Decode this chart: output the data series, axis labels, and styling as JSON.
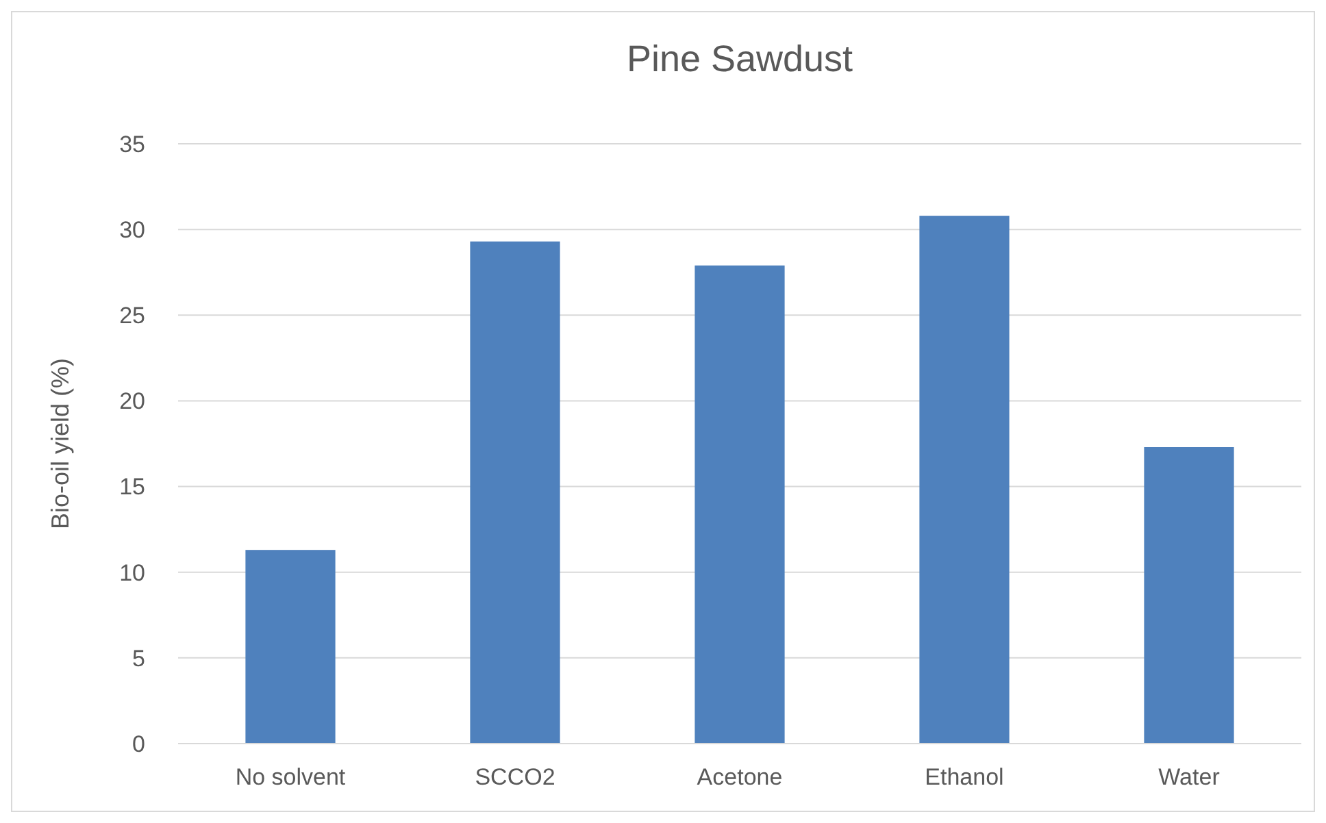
{
  "chart_data": {
    "type": "bar",
    "title": "Pine Sawdust",
    "ylabel": "Bio-oil yield (%)",
    "categories": [
      "No solvent",
      "SCCO2",
      "Acetone",
      "Ethanol",
      "Water"
    ],
    "values": [
      11.3,
      29.3,
      27.9,
      30.8,
      17.3
    ],
    "color": "#4f81bd",
    "ylim": [
      0,
      35
    ],
    "yticks": [
      0,
      5,
      10,
      15,
      20,
      25,
      30,
      35
    ],
    "grid": "y"
  }
}
